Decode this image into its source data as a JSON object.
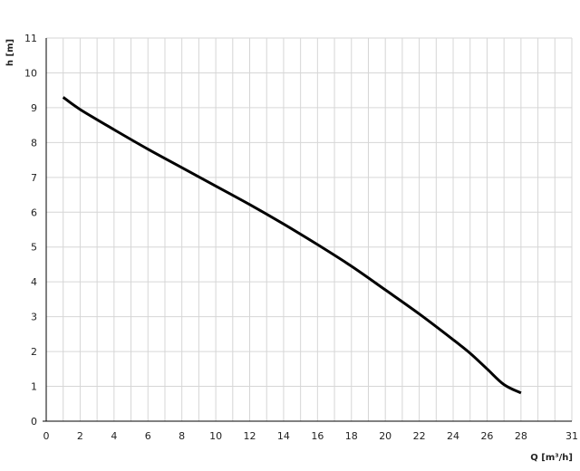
{
  "chart_data": {
    "type": "line",
    "title": "",
    "xlabel": "Q [m³/h]",
    "ylabel": "h [m]",
    "xlim": [
      0,
      31
    ],
    "ylim": [
      0,
      11
    ],
    "x_ticks": [
      "0",
      "2",
      "4",
      "6",
      "8",
      "10",
      "12",
      "14",
      "16",
      "18",
      "20",
      "22",
      "24",
      "26",
      "28",
      "31"
    ],
    "y_ticks": [
      "0",
      "1",
      "2",
      "3",
      "4",
      "5",
      "6",
      "7",
      "8",
      "9",
      "10",
      "11"
    ],
    "grid": true,
    "series": [
      {
        "color": "#000000",
        "x": [
          1,
          2,
          4,
          6,
          8,
          10,
          12,
          14,
          16,
          18,
          20,
          22,
          24,
          25,
          26,
          27,
          28
        ],
        "y": [
          9.3,
          8.95,
          8.37,
          7.81,
          7.28,
          6.75,
          6.22,
          5.66,
          5.07,
          4.45,
          3.77,
          3.08,
          2.34,
          1.95,
          1.5,
          1.05,
          0.81
        ]
      }
    ]
  }
}
